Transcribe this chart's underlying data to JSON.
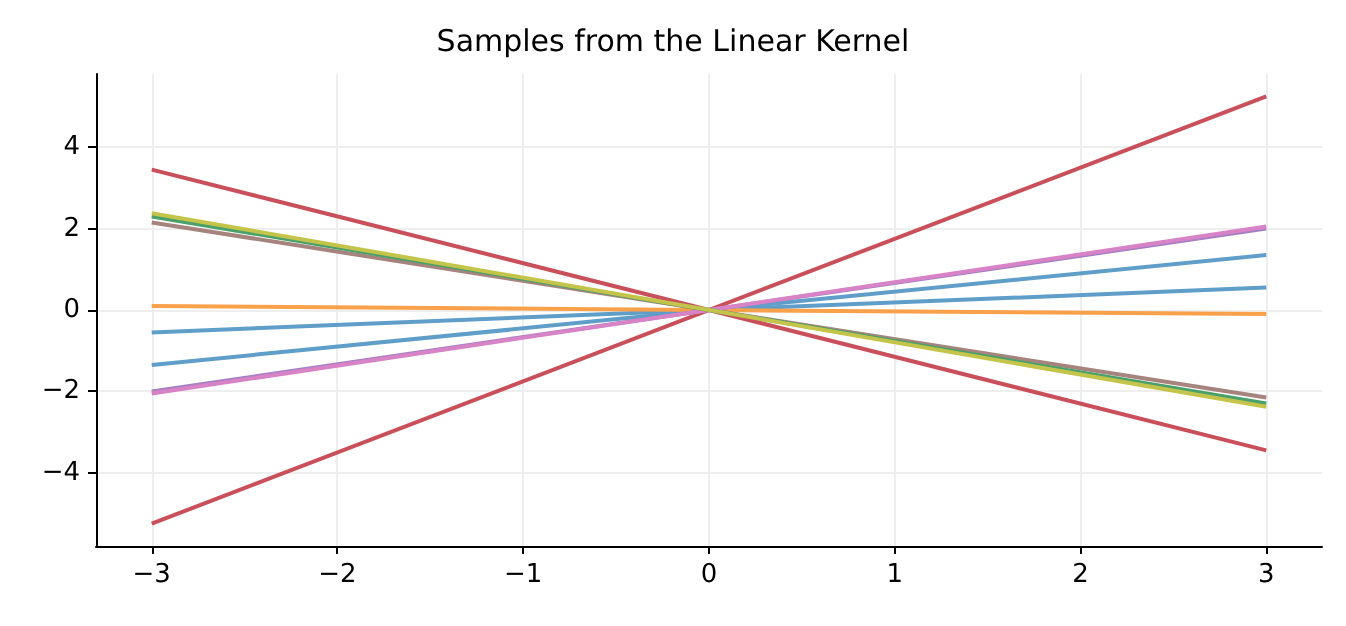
{
  "chart_data": {
    "type": "line",
    "title": "Samples from the Linear Kernel",
    "x": [
      -3,
      3
    ],
    "series": [
      {
        "color": "#5f9ec9",
        "values": [
          -0.55,
          0.55
        ]
      },
      {
        "color": "#5f9ec9",
        "values": [
          -1.35,
          1.35
        ]
      },
      {
        "color": "#f9a04a",
        "values": [
          0.1,
          -0.1
        ]
      },
      {
        "color": "#c9505a",
        "values": [
          -5.25,
          5.25
        ]
      },
      {
        "color": "#c9505a",
        "values": [
          3.45,
          -3.45
        ]
      },
      {
        "color": "#a57fc4",
        "values": [
          -2.0,
          2.0
        ]
      },
      {
        "color": "#d983c7",
        "values": [
          -2.05,
          2.05
        ]
      },
      {
        "color": "#a6847d",
        "values": [
          2.15,
          -2.15
        ]
      },
      {
        "color": "#4aa06a",
        "values": [
          2.3,
          -2.3
        ]
      },
      {
        "color": "#c4c44a",
        "values": [
          2.38,
          -2.38
        ]
      }
    ],
    "xlim": [
      -3.3,
      3.3
    ],
    "xticks": [
      -3,
      -2,
      -1,
      0,
      1,
      2,
      3
    ],
    "ylim": [
      -5.8,
      5.8
    ],
    "yticks": [
      -4,
      -2,
      0,
      2,
      4
    ],
    "grid": true,
    "marker": "none",
    "line_style": "solid"
  }
}
